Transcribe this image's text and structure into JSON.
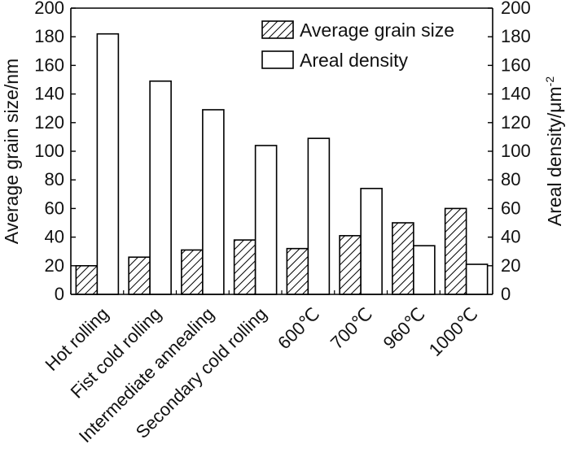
{
  "chart_data": {
    "type": "bar",
    "categories": [
      "Hot rolling",
      "Fist cold rolling",
      "Intermediate annealing",
      "Secondary cold rolling",
      "600℃",
      "700℃",
      "960℃",
      "1000℃"
    ],
    "series": [
      {
        "name": "Average grain size",
        "axis": "left",
        "pattern": "hatched",
        "values": [
          20,
          26,
          31,
          38,
          32,
          41,
          50,
          60
        ]
      },
      {
        "name": "Areal density",
        "axis": "right",
        "pattern": "open",
        "values": [
          182,
          149,
          129,
          104,
          109,
          74,
          34,
          21
        ]
      }
    ],
    "ylabel_left": "Average grain size/nm",
    "ylabel_right_base": "Areal density/μm",
    "ylabel_right_sup": "-2",
    "ylim_left": [
      0,
      200
    ],
    "ylim_right": [
      0,
      200
    ],
    "yticks": [
      "0",
      "20",
      "40",
      "60",
      "80",
      "100",
      "120",
      "140",
      "160",
      "180",
      "200"
    ],
    "legend_position": "top-right",
    "grid": false
  },
  "colors": {
    "axis": "#000000",
    "bar_fill": "#ffffff",
    "hatch": "#000000"
  }
}
